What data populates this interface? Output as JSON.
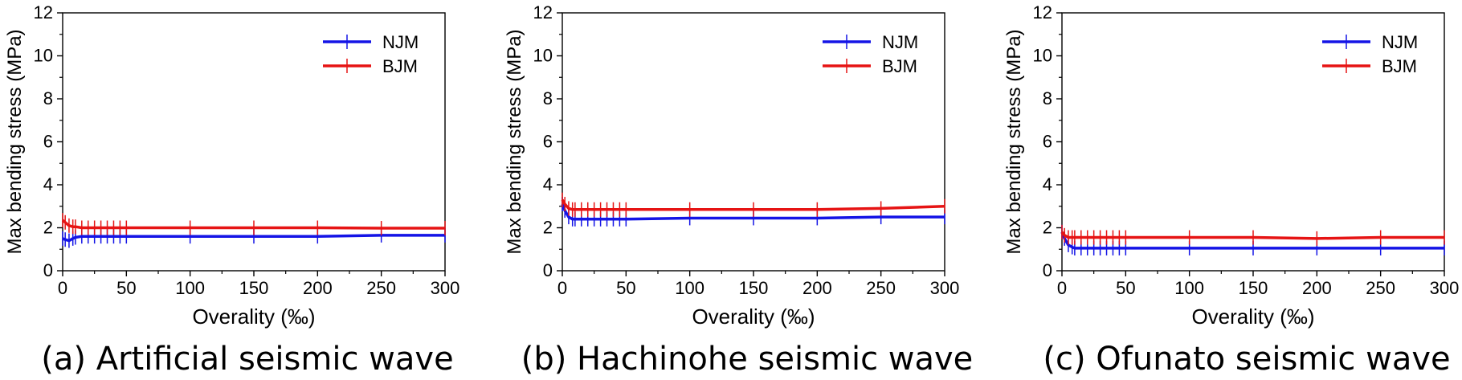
{
  "colors": {
    "njm": "#1414e6",
    "bjm": "#e61414",
    "axis": "#000000"
  },
  "chart_data": [
    {
      "type": "line",
      "caption": "(a) Artificial seismic wave",
      "xlabel": "Overality (‰)",
      "ylabel": "Max bending stress (MPa)",
      "xlim": [
        0,
        300
      ],
      "ylim": [
        0,
        12
      ],
      "xticks": [
        0,
        50,
        100,
        150,
        200,
        250,
        300
      ],
      "yticks": [
        0,
        2,
        4,
        6,
        8,
        10,
        12
      ],
      "grid": false,
      "legend": "top-right",
      "series": [
        {
          "name": "NJM",
          "color": "#1414e6",
          "x": [
            0,
            2,
            5,
            8,
            10,
            15,
            20,
            25,
            30,
            35,
            40,
            45,
            50,
            100,
            150,
            200,
            250,
            300
          ],
          "y": [
            1.5,
            1.45,
            1.4,
            1.5,
            1.55,
            1.6,
            1.6,
            1.6,
            1.6,
            1.6,
            1.6,
            1.6,
            1.6,
            1.6,
            1.6,
            1.6,
            1.65,
            1.65
          ]
        },
        {
          "name": "BJM",
          "color": "#e61414",
          "x": [
            0,
            2,
            5,
            8,
            10,
            15,
            20,
            25,
            30,
            35,
            40,
            45,
            50,
            100,
            150,
            200,
            250,
            300
          ],
          "y": [
            2.35,
            2.25,
            2.1,
            2.05,
            2.05,
            2.0,
            2.0,
            2.0,
            2.0,
            2.0,
            2.0,
            2.0,
            2.0,
            2.0,
            2.0,
            2.0,
            1.98,
            1.98
          ]
        }
      ]
    },
    {
      "type": "line",
      "caption": "(b) Hachinohe seismic wave",
      "xlabel": "Overality (‰)",
      "ylabel": "Max bending stress (MPa)",
      "xlim": [
        0,
        300
      ],
      "ylim": [
        0,
        12
      ],
      "xticks": [
        0,
        50,
        100,
        150,
        200,
        250,
        300
      ],
      "yticks": [
        0,
        2,
        4,
        6,
        8,
        10,
        12
      ],
      "grid": false,
      "legend": "top-right",
      "series": [
        {
          "name": "NJM",
          "color": "#1414e6",
          "x": [
            0,
            2,
            5,
            8,
            10,
            15,
            20,
            25,
            30,
            35,
            40,
            45,
            50,
            100,
            150,
            200,
            250,
            300
          ],
          "y": [
            3.1,
            2.8,
            2.5,
            2.4,
            2.4,
            2.4,
            2.4,
            2.4,
            2.4,
            2.4,
            2.4,
            2.4,
            2.4,
            2.45,
            2.45,
            2.45,
            2.5,
            2.5
          ]
        },
        {
          "name": "BJM",
          "color": "#e61414",
          "x": [
            0,
            2,
            5,
            8,
            10,
            15,
            20,
            25,
            30,
            35,
            40,
            45,
            50,
            100,
            150,
            200,
            250,
            300
          ],
          "y": [
            3.3,
            3.1,
            2.9,
            2.85,
            2.85,
            2.85,
            2.85,
            2.85,
            2.85,
            2.85,
            2.85,
            2.85,
            2.85,
            2.85,
            2.85,
            2.85,
            2.9,
            3.0
          ]
        }
      ]
    },
    {
      "type": "line",
      "caption": "(c) Ofunato seismic wave",
      "xlabel": "Overality (‰)",
      "ylabel": "Max bending stress (MPa)",
      "xlim": [
        0,
        300
      ],
      "ylim": [
        0,
        12
      ],
      "xticks": [
        0,
        50,
        100,
        150,
        200,
        250,
        300
      ],
      "yticks": [
        0,
        2,
        4,
        6,
        8,
        10,
        12
      ],
      "grid": false,
      "legend": "top-right",
      "series": [
        {
          "name": "NJM",
          "color": "#1414e6",
          "x": [
            0,
            2,
            5,
            8,
            10,
            15,
            20,
            25,
            30,
            35,
            40,
            45,
            50,
            100,
            150,
            200,
            250,
            300
          ],
          "y": [
            1.8,
            1.5,
            1.2,
            1.1,
            1.05,
            1.05,
            1.05,
            1.05,
            1.05,
            1.05,
            1.05,
            1.05,
            1.05,
            1.05,
            1.05,
            1.05,
            1.05,
            1.05
          ]
        },
        {
          "name": "BJM",
          "color": "#e61414",
          "x": [
            0,
            2,
            5,
            8,
            10,
            15,
            20,
            25,
            30,
            35,
            40,
            45,
            50,
            100,
            150,
            200,
            250,
            300
          ],
          "y": [
            1.8,
            1.65,
            1.55,
            1.55,
            1.55,
            1.55,
            1.55,
            1.55,
            1.55,
            1.55,
            1.55,
            1.55,
            1.55,
            1.55,
            1.55,
            1.5,
            1.55,
            1.55
          ]
        }
      ]
    }
  ]
}
